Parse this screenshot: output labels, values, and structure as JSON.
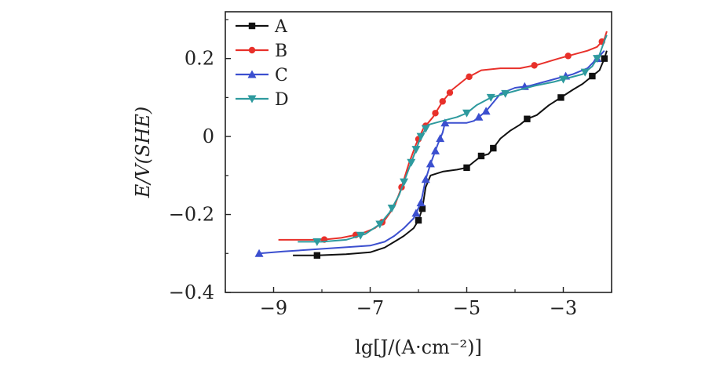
{
  "chart_data": {
    "type": "line",
    "xlabel": "lg[J/(A·cm⁻²)]",
    "ylabel": "E/V(SHE)",
    "xlim": [
      -10,
      -2
    ],
    "ylim": [
      -0.4,
      0.32
    ],
    "x_ticks": [
      -9,
      -7,
      -5,
      -3
    ],
    "x_tick_labels": [
      "−9",
      "−7",
      "−5",
      "−3"
    ],
    "y_ticks": [
      -0.4,
      -0.2,
      0,
      0.2
    ],
    "y_tick_labels": [
      "−0.4",
      "−0.2",
      "0",
      "0.2"
    ],
    "legend_position": "top-left",
    "series": [
      {
        "name": "A",
        "color": "#111111",
        "marker": "square",
        "points": [
          [
            -8.6,
            -0.305
          ],
          [
            -8.1,
            -0.305
          ],
          [
            -7.5,
            -0.302
          ],
          [
            -7.0,
            -0.297
          ],
          [
            -6.7,
            -0.285
          ],
          [
            -6.5,
            -0.27
          ],
          [
            -6.3,
            -0.255
          ],
          [
            -6.1,
            -0.235
          ],
          [
            -6.0,
            -0.215
          ],
          [
            -5.92,
            -0.185
          ],
          [
            -5.85,
            -0.13
          ],
          [
            -5.75,
            -0.1
          ],
          [
            -5.5,
            -0.09
          ],
          [
            -5.2,
            -0.085
          ],
          [
            -5.0,
            -0.08
          ],
          [
            -4.85,
            -0.065
          ],
          [
            -4.7,
            -0.05
          ],
          [
            -4.55,
            -0.045
          ],
          [
            -4.45,
            -0.03
          ],
          [
            -4.3,
            -0.005
          ],
          [
            -4.1,
            0.015
          ],
          [
            -3.9,
            0.03
          ],
          [
            -3.75,
            0.045
          ],
          [
            -3.55,
            0.055
          ],
          [
            -3.3,
            0.08
          ],
          [
            -3.05,
            0.1
          ],
          [
            -2.8,
            0.12
          ],
          [
            -2.6,
            0.135
          ],
          [
            -2.4,
            0.155
          ],
          [
            -2.25,
            0.17
          ],
          [
            -2.15,
            0.2
          ],
          [
            -2.1,
            0.22
          ]
        ],
        "markers_at": [
          -8.1,
          -6.0,
          -5.92,
          -5.0,
          -4.7,
          -4.45,
          -3.75,
          -3.05,
          -2.4,
          -2.15
        ]
      },
      {
        "name": "B",
        "color": "#e8302a",
        "marker": "circle",
        "points": [
          [
            -8.9,
            -0.265
          ],
          [
            -8.5,
            -0.265
          ],
          [
            -8.0,
            -0.265
          ],
          [
            -7.6,
            -0.26
          ],
          [
            -7.2,
            -0.25
          ],
          [
            -6.9,
            -0.235
          ],
          [
            -6.7,
            -0.215
          ],
          [
            -6.5,
            -0.18
          ],
          [
            -6.35,
            -0.13
          ],
          [
            -6.2,
            -0.07
          ],
          [
            -6.05,
            -0.02
          ],
          [
            -5.9,
            0.02
          ],
          [
            -5.7,
            0.05
          ],
          [
            -5.5,
            0.09
          ],
          [
            -5.3,
            0.12
          ],
          [
            -5.0,
            0.15
          ],
          [
            -4.7,
            0.17
          ],
          [
            -4.3,
            0.175
          ],
          [
            -3.9,
            0.175
          ],
          [
            -3.5,
            0.185
          ],
          [
            -3.1,
            0.2
          ],
          [
            -2.8,
            0.21
          ],
          [
            -2.5,
            0.22
          ],
          [
            -2.3,
            0.23
          ],
          [
            -2.15,
            0.25
          ],
          [
            -2.1,
            0.27
          ]
        ],
        "markers_at": [
          -7.95,
          -7.3,
          -6.75,
          -6.35,
          -6.0,
          -5.85,
          -5.65,
          -5.5,
          -5.35,
          -4.95,
          -3.6,
          -2.9,
          -2.2
        ]
      },
      {
        "name": "C",
        "color": "#3b4fcf",
        "marker": "triangle-up",
        "points": [
          [
            -9.3,
            -0.3
          ],
          [
            -8.8,
            -0.295
          ],
          [
            -8.2,
            -0.29
          ],
          [
            -7.6,
            -0.285
          ],
          [
            -7.0,
            -0.28
          ],
          [
            -6.7,
            -0.27
          ],
          [
            -6.5,
            -0.255
          ],
          [
            -6.3,
            -0.235
          ],
          [
            -6.1,
            -0.21
          ],
          [
            -5.95,
            -0.17
          ],
          [
            -5.85,
            -0.11
          ],
          [
            -5.75,
            -0.07
          ],
          [
            -5.6,
            -0.02
          ],
          [
            -5.5,
            0.01
          ],
          [
            -5.45,
            0.035
          ],
          [
            -5.0,
            0.035
          ],
          [
            -4.85,
            0.04
          ],
          [
            -4.75,
            0.05
          ],
          [
            -4.6,
            0.065
          ],
          [
            -4.5,
            0.08
          ],
          [
            -4.3,
            0.11
          ],
          [
            -4.0,
            0.125
          ],
          [
            -3.7,
            0.13
          ],
          [
            -3.4,
            0.14
          ],
          [
            -3.1,
            0.15
          ],
          [
            -2.8,
            0.16
          ],
          [
            -2.5,
            0.175
          ],
          [
            -2.3,
            0.2
          ],
          [
            -2.15,
            0.22
          ]
        ],
        "markers_at": [
          -9.3,
          -6.05,
          -5.95,
          -5.85,
          -5.75,
          -5.65,
          -5.55,
          -5.45,
          -4.75,
          -4.6,
          -3.8,
          -2.95,
          -2.3
        ]
      },
      {
        "name": "D",
        "color": "#2e9a9e",
        "marker": "triangle-down",
        "points": [
          [
            -8.5,
            -0.27
          ],
          [
            -8.0,
            -0.27
          ],
          [
            -7.5,
            -0.265
          ],
          [
            -7.1,
            -0.25
          ],
          [
            -6.8,
            -0.225
          ],
          [
            -6.6,
            -0.195
          ],
          [
            -6.4,
            -0.15
          ],
          [
            -6.25,
            -0.1
          ],
          [
            -6.1,
            -0.05
          ],
          [
            -5.95,
            0.0
          ],
          [
            -5.8,
            0.03
          ],
          [
            -5.5,
            0.04
          ],
          [
            -5.2,
            0.05
          ],
          [
            -5.0,
            0.06
          ],
          [
            -4.8,
            0.08
          ],
          [
            -4.5,
            0.1
          ],
          [
            -4.2,
            0.11
          ],
          [
            -3.9,
            0.12
          ],
          [
            -3.6,
            0.13
          ],
          [
            -3.2,
            0.14
          ],
          [
            -2.9,
            0.15
          ],
          [
            -2.6,
            0.16
          ],
          [
            -2.4,
            0.18
          ],
          [
            -2.25,
            0.21
          ],
          [
            -2.15,
            0.245
          ],
          [
            -2.1,
            0.26
          ]
        ],
        "markers_at": [
          -8.1,
          -7.2,
          -6.8,
          -6.55,
          -6.3,
          -6.15,
          -6.05,
          -5.95,
          -5.85,
          -5.0,
          -4.5,
          -4.2,
          -3.0,
          -2.55,
          -2.3
        ]
      }
    ]
  }
}
